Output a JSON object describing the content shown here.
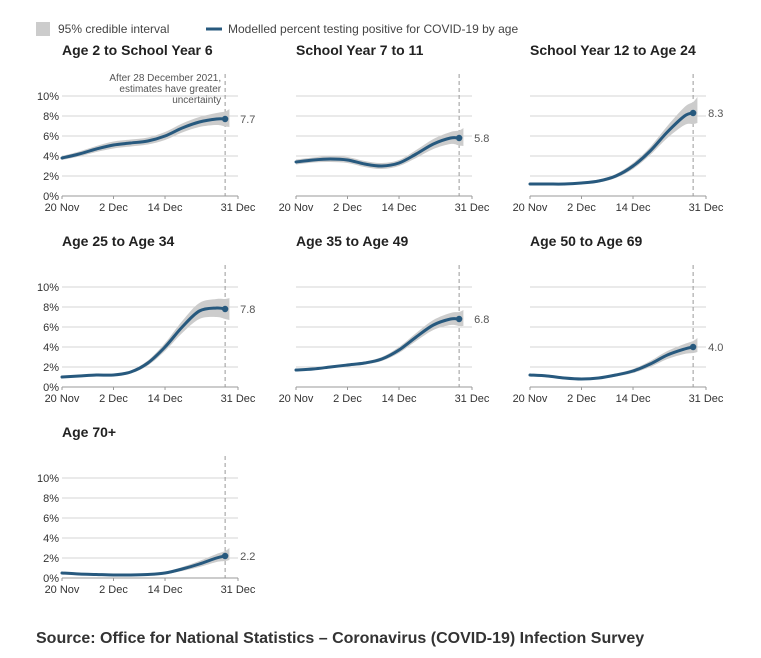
{
  "legend": {
    "interval_label": "95% credible interval",
    "line_label": "Modelled percent testing positive for COVID-19 by age"
  },
  "source": "Source: Office for National Statistics – Coronavirus (COVID-19) Infection Survey",
  "colors": {
    "line": "#27597e",
    "band": "#cccccc",
    "grid": "#d6d6d6",
    "marker": "#999999"
  },
  "chart_data": {
    "type": "line",
    "x_tick_labels": [
      "20 Nov",
      "2 Dec",
      "14 Dec",
      "31 Dec"
    ],
    "x_tick_days": [
      0,
      12,
      24,
      41
    ],
    "x_last_day": 39,
    "y_tick_labels": [
      "0%",
      "2%",
      "4%",
      "6%",
      "8%",
      "10%"
    ],
    "y_ticks": [
      0,
      2,
      4,
      6,
      8,
      10
    ],
    "ylim": [
      0,
      10
    ],
    "marker_day": 38,
    "annotation": "After 28 December 2021, estimates have greater uncertainty",
    "annotation_lines": [
      "After 28 December 2021,",
      "estimates have greater",
      "uncertainty"
    ],
    "panels": [
      {
        "title": "Age 2 to School Year 6",
        "show_y_labels": true,
        "end_label": "7.7",
        "days": [
          0,
          4,
          8,
          12,
          16,
          20,
          24,
          28,
          32,
          36,
          38,
          39
        ],
        "values": [
          3.8,
          4.2,
          4.7,
          5.1,
          5.3,
          5.5,
          6.0,
          6.8,
          7.4,
          7.7,
          7.7,
          7.8
        ],
        "band": [
          0.2,
          0.25,
          0.3,
          0.35,
          0.35,
          0.35,
          0.4,
          0.45,
          0.5,
          0.6,
          0.75,
          0.9
        ]
      },
      {
        "title": "School Year 7 to 11",
        "show_y_labels": false,
        "end_label": "5.8",
        "days": [
          0,
          4,
          8,
          12,
          16,
          20,
          24,
          28,
          32,
          36,
          38,
          39
        ],
        "values": [
          3.4,
          3.6,
          3.7,
          3.6,
          3.2,
          3.0,
          3.3,
          4.2,
          5.2,
          5.8,
          5.8,
          5.9
        ],
        "band": [
          0.25,
          0.25,
          0.3,
          0.3,
          0.3,
          0.3,
          0.3,
          0.4,
          0.5,
          0.6,
          0.75,
          0.9
        ]
      },
      {
        "title": "School Year 12 to Age 24",
        "show_y_labels": false,
        "end_label": "8.3",
        "days": [
          0,
          4,
          8,
          12,
          16,
          20,
          24,
          28,
          32,
          36,
          38,
          39
        ],
        "values": [
          1.2,
          1.2,
          1.2,
          1.3,
          1.5,
          2.0,
          3.0,
          4.5,
          6.4,
          8.0,
          8.3,
          8.6
        ],
        "band": [
          0.1,
          0.1,
          0.1,
          0.1,
          0.15,
          0.2,
          0.3,
          0.4,
          0.6,
          0.9,
          1.1,
          1.3
        ]
      },
      {
        "title": "Age 25 to Age 34",
        "show_y_labels": true,
        "end_label": "7.8",
        "days": [
          0,
          4,
          8,
          12,
          16,
          20,
          24,
          28,
          32,
          36,
          38,
          39
        ],
        "values": [
          1.0,
          1.1,
          1.2,
          1.2,
          1.5,
          2.4,
          4.0,
          6.0,
          7.6,
          7.9,
          7.8,
          7.8
        ],
        "band": [
          0.1,
          0.1,
          0.1,
          0.1,
          0.15,
          0.25,
          0.4,
          0.6,
          0.8,
          0.9,
          1.0,
          1.1
        ]
      },
      {
        "title": "Age 35 to Age 49",
        "show_y_labels": false,
        "end_label": "6.8",
        "days": [
          0,
          4,
          8,
          12,
          16,
          20,
          24,
          28,
          32,
          36,
          38,
          39
        ],
        "values": [
          1.7,
          1.8,
          2.0,
          2.2,
          2.4,
          2.8,
          3.7,
          5.0,
          6.2,
          6.8,
          6.8,
          6.9
        ],
        "band": [
          0.1,
          0.1,
          0.1,
          0.1,
          0.15,
          0.2,
          0.3,
          0.4,
          0.5,
          0.6,
          0.7,
          0.8
        ]
      },
      {
        "title": "Age 50 to Age 69",
        "show_y_labels": false,
        "end_label": "4.0",
        "days": [
          0,
          4,
          8,
          12,
          16,
          20,
          24,
          28,
          32,
          36,
          38,
          39
        ],
        "values": [
          1.2,
          1.1,
          0.9,
          0.8,
          0.9,
          1.2,
          1.6,
          2.3,
          3.2,
          3.8,
          4.0,
          4.2
        ],
        "band": [
          0.1,
          0.1,
          0.1,
          0.1,
          0.1,
          0.15,
          0.2,
          0.3,
          0.4,
          0.5,
          0.6,
          0.7
        ]
      },
      {
        "title": "Age 70+",
        "show_y_labels": true,
        "end_label": "2.2",
        "days": [
          0,
          4,
          8,
          12,
          16,
          20,
          24,
          28,
          32,
          36,
          38,
          39
        ],
        "values": [
          0.5,
          0.4,
          0.35,
          0.3,
          0.3,
          0.35,
          0.5,
          0.9,
          1.4,
          2.0,
          2.2,
          2.4
        ],
        "band": [
          0.08,
          0.08,
          0.08,
          0.08,
          0.08,
          0.1,
          0.12,
          0.2,
          0.3,
          0.4,
          0.5,
          0.6
        ]
      }
    ]
  }
}
